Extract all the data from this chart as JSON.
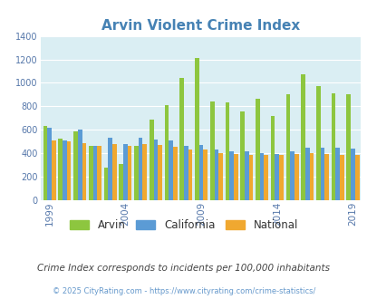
{
  "title": "Arvin Violent Crime Index",
  "subtitle": "Crime Index corresponds to incidents per 100,000 inhabitants",
  "copyright": "© 2025 CityRating.com - https://www.cityrating.com/crime-statistics/",
  "years": [
    1999,
    2000,
    2001,
    2002,
    2003,
    2004,
    2005,
    2006,
    2007,
    2008,
    2009,
    2010,
    2011,
    2012,
    2013,
    2014,
    2015,
    2016,
    2017,
    2018,
    2019
  ],
  "arvin": [
    630,
    525,
    590,
    460,
    280,
    310,
    460,
    690,
    810,
    1040,
    1210,
    845,
    835,
    755,
    865,
    720,
    900,
    1070,
    975,
    910,
    905
  ],
  "california": [
    620,
    510,
    600,
    460,
    530,
    480,
    530,
    520,
    510,
    465,
    470,
    430,
    415,
    420,
    400,
    395,
    420,
    445,
    450,
    445,
    440
  ],
  "national": [
    510,
    500,
    490,
    465,
    480,
    465,
    480,
    475,
    455,
    435,
    430,
    405,
    395,
    390,
    385,
    385,
    395,
    400,
    395,
    385,
    385
  ],
  "arvin_color": "#8dc63f",
  "california_color": "#5b9bd5",
  "national_color": "#f0a830",
  "bg_color": "#daeef3",
  "ylim": [
    0,
    1400
  ],
  "yticks": [
    0,
    200,
    400,
    600,
    800,
    1000,
    1200,
    1400
  ],
  "xtick_labels": [
    "1999",
    "2004",
    "2009",
    "2014",
    "2019"
  ],
  "xtick_year_positions": [
    1999,
    2004,
    2009,
    2014,
    2019
  ]
}
